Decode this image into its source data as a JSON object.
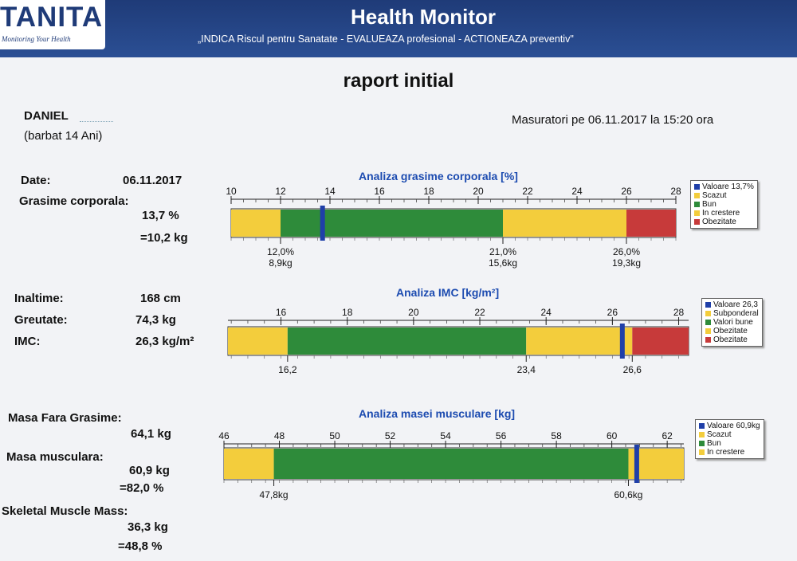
{
  "header": {
    "logo": "TANITA",
    "logo_sub": "Monitoring Your Health",
    "title": "Health Monitor",
    "subtitle": "„INDICA Riscul pentru Sanatate - EVALUEAZA profesional - ACTIONEAZA preventiv\""
  },
  "report_title": "raport initial",
  "patient": {
    "name": "DANIEL",
    "info": "(barbat 14 Ani)"
  },
  "measured": "Masuratori pe 06.11.2017 la 15:20 ora",
  "left": {
    "date_label": "Date:",
    "date_value": "06.11.2017",
    "fat_label": "Grasime corporala:",
    "fat_pct": "13,7 %",
    "fat_kg": "=10,2 kg",
    "height_label": "Inaltime:",
    "height_value": "168 cm",
    "weight_label": "Greutate:",
    "weight_value": "74,3 kg",
    "bmi_label": "IMC:",
    "bmi_value": "26,3 kg/m²",
    "ffm_label": "Masa Fara Grasime:",
    "ffm_value": "64,1 kg",
    "muscle_label": "Masa musculara:",
    "muscle_kg": "60,9 kg",
    "muscle_pct": "=82,0 %",
    "smm_label": "Skeletal Muscle Mass:",
    "smm_kg": "36,3 kg",
    "smm_pct": "=48,8 %"
  },
  "colors": {
    "blue": "#1f3fa8",
    "yellow": "#f3cd3c",
    "green": "#2e8b3a",
    "red": "#c73a3a"
  },
  "chart_data": [
    {
      "type": "bar",
      "title": "Analiza grasime corporala [%]",
      "xlim": [
        10,
        28
      ],
      "ticks": [
        10,
        12,
        14,
        16,
        18,
        20,
        22,
        24,
        26,
        28
      ],
      "segments": [
        {
          "from": 10,
          "to": 12,
          "color": "yellow"
        },
        {
          "from": 12,
          "to": 21,
          "color": "green"
        },
        {
          "from": 21,
          "to": 26,
          "color": "yellow"
        },
        {
          "from": 26,
          "to": 28,
          "color": "red"
        }
      ],
      "marker": 13.7,
      "thresholds": [
        {
          "value": 12,
          "label1": "12,0%",
          "label2": "8,9kg"
        },
        {
          "value": 21,
          "label1": "21,0%",
          "label2": "15,6kg"
        },
        {
          "value": 26,
          "label1": "26,0%",
          "label2": "19,3kg"
        }
      ],
      "legend": [
        {
          "label": "Valoare 13,7%",
          "color": "blue"
        },
        {
          "label": "Scazut",
          "color": "yellow"
        },
        {
          "label": "Bun",
          "color": "green"
        },
        {
          "label": "In crestere",
          "color": "yellow"
        },
        {
          "label": "Obezitate",
          "color": "red"
        }
      ]
    },
    {
      "type": "bar",
      "title": "Analiza IMC [kg/m²]",
      "xlim": [
        14.4,
        28.3
      ],
      "ticks": [
        16,
        18,
        20,
        22,
        24,
        26,
        28
      ],
      "segments": [
        {
          "from": 14.4,
          "to": 16.2,
          "color": "yellow"
        },
        {
          "from": 16.2,
          "to": 23.4,
          "color": "green"
        },
        {
          "from": 23.4,
          "to": 26.6,
          "color": "yellow"
        },
        {
          "from": 26.6,
          "to": 28.3,
          "color": "red"
        }
      ],
      "marker": 26.3,
      "thresholds": [
        {
          "value": 16.2,
          "label1": "16,2",
          "label2": ""
        },
        {
          "value": 23.4,
          "label1": "23,4",
          "label2": ""
        },
        {
          "value": 26.6,
          "label1": "26,6",
          "label2": ""
        }
      ],
      "legend": [
        {
          "label": "Valoare 26,3",
          "color": "blue"
        },
        {
          "label": "Subponderal",
          "color": "yellow"
        },
        {
          "label": "Valori bune",
          "color": "green"
        },
        {
          "label": "Obezitate",
          "color": "yellow"
        },
        {
          "label": "Obezitate",
          "color": "red"
        }
      ]
    },
    {
      "type": "bar",
      "title": "Analiza masei musculare [kg]",
      "xlim": [
        46,
        62.6
      ],
      "ticks": [
        46,
        48,
        50,
        52,
        54,
        56,
        58,
        60,
        62
      ],
      "segments": [
        {
          "from": 46,
          "to": 47.8,
          "color": "yellow"
        },
        {
          "from": 47.8,
          "to": 60.6,
          "color": "green"
        },
        {
          "from": 60.6,
          "to": 62.6,
          "color": "yellow"
        }
      ],
      "marker": 60.9,
      "thresholds": [
        {
          "value": 47.8,
          "label1": "47,8kg",
          "label2": ""
        },
        {
          "value": 60.6,
          "label1": "60,6kg",
          "label2": ""
        }
      ],
      "legend": [
        {
          "label": "Valoare 60,9kg",
          "color": "blue"
        },
        {
          "label": "Scazut",
          "color": "yellow"
        },
        {
          "label": "Bun",
          "color": "green"
        },
        {
          "label": "In crestere",
          "color": "yellow"
        }
      ]
    }
  ]
}
